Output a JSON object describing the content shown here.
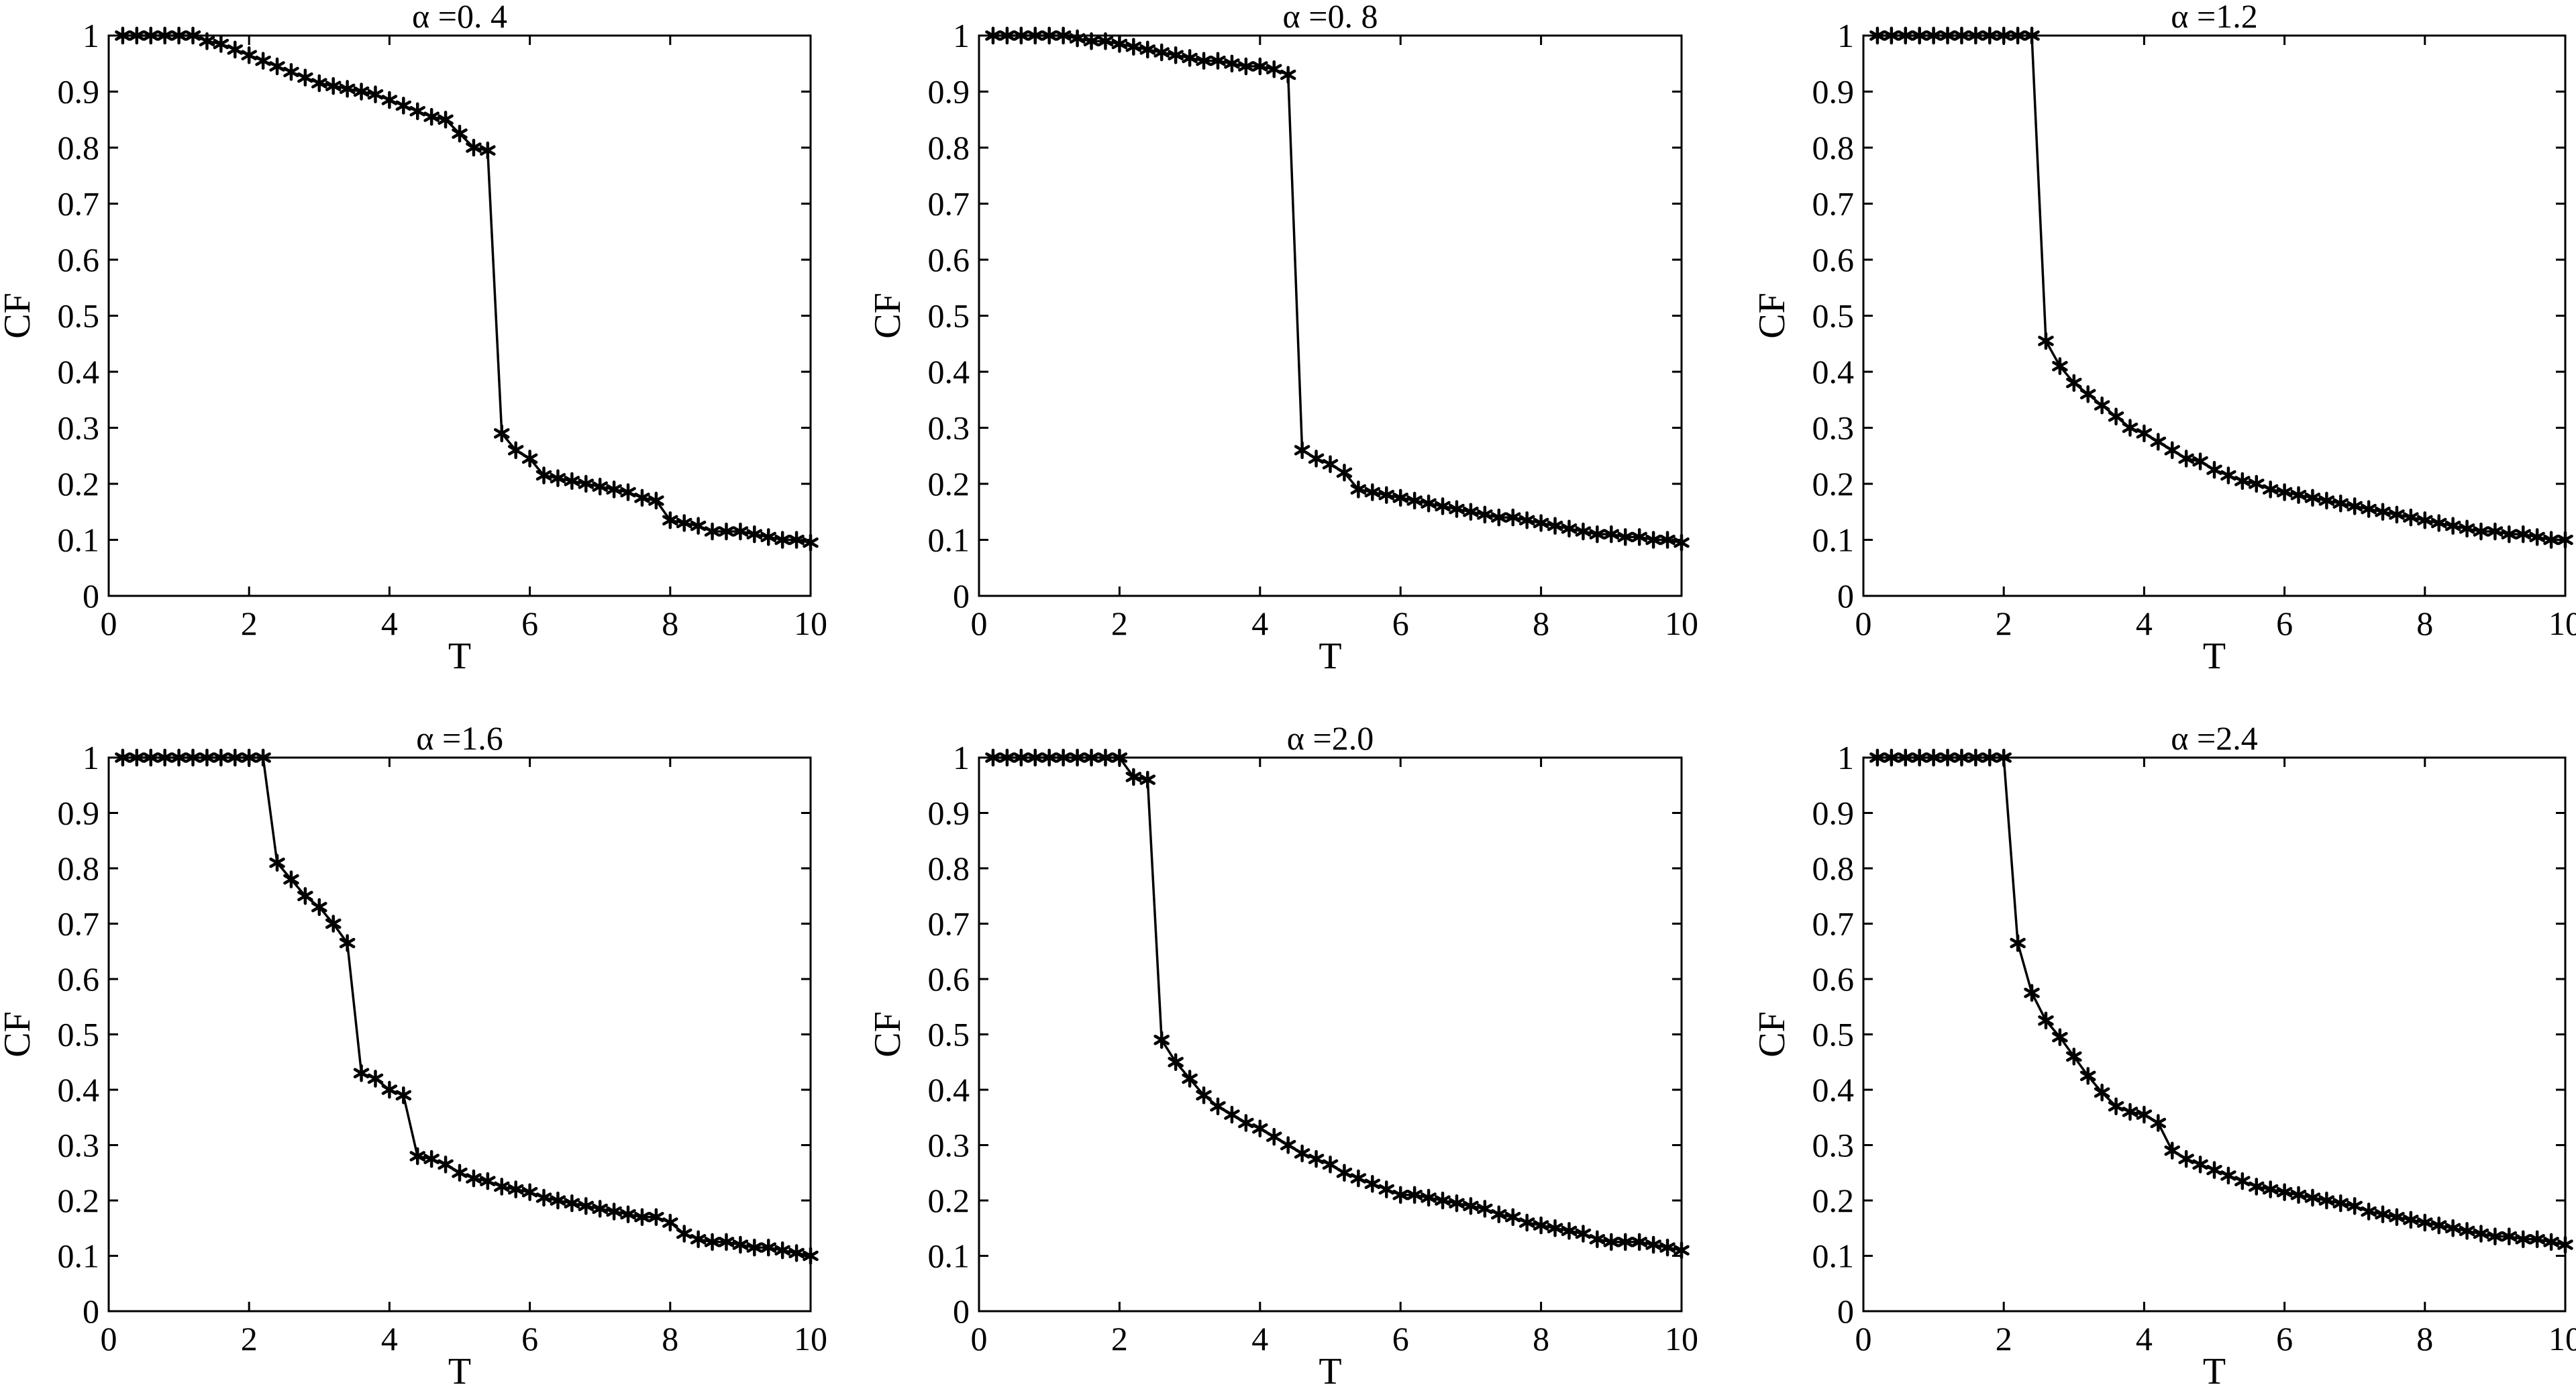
{
  "chart_data": [
    {
      "type": "line",
      "title": "α =0. 4",
      "xlabel": "T",
      "ylabel": "CF",
      "xlim": [
        0,
        10
      ],
      "ylim": [
        0,
        1
      ],
      "xticks": [
        "0",
        "2",
        "4",
        "6",
        "8",
        "10"
      ],
      "yticks": [
        "0",
        "0.1",
        "0.2",
        "0.3",
        "0.4",
        "0.5",
        "0.6",
        "0.7",
        "0.8",
        "0.9",
        "1"
      ],
      "marker": "asterisk",
      "grid": false,
      "x": [
        0.2,
        0.4,
        0.6,
        0.8,
        1.0,
        1.2,
        1.4,
        1.6,
        1.8,
        2.0,
        2.2,
        2.4,
        2.6,
        2.8,
        3.0,
        3.2,
        3.4,
        3.6,
        3.8,
        4.0,
        4.2,
        4.4,
        4.6,
        4.8,
        5.0,
        5.2,
        5.4,
        5.6,
        5.8,
        6.0,
        6.2,
        6.4,
        6.6,
        6.8,
        7.0,
        7.2,
        7.4,
        7.6,
        7.8,
        8.0,
        8.2,
        8.4,
        8.6,
        8.8,
        9.0,
        9.2,
        9.4,
        9.6,
        9.8,
        10.0
      ],
      "y": [
        1.0,
        1.0,
        1.0,
        1.0,
        1.0,
        1.0,
        0.99,
        0.985,
        0.975,
        0.965,
        0.955,
        0.945,
        0.935,
        0.925,
        0.915,
        0.91,
        0.905,
        0.9,
        0.895,
        0.885,
        0.875,
        0.865,
        0.855,
        0.85,
        0.825,
        0.8,
        0.795,
        0.29,
        0.26,
        0.245,
        0.215,
        0.21,
        0.205,
        0.2,
        0.195,
        0.19,
        0.185,
        0.175,
        0.17,
        0.135,
        0.13,
        0.125,
        0.115,
        0.115,
        0.115,
        0.11,
        0.105,
        0.1,
        0.1,
        0.095
      ]
    },
    {
      "type": "line",
      "title": "α =0. 8",
      "xlabel": "T",
      "ylabel": "CF",
      "xlim": [
        0,
        10
      ],
      "ylim": [
        0,
        1
      ],
      "xticks": [
        "0",
        "2",
        "4",
        "6",
        "8",
        "10"
      ],
      "yticks": [
        "0",
        "0.1",
        "0.2",
        "0.3",
        "0.4",
        "0.5",
        "0.6",
        "0.7",
        "0.8",
        "0.9",
        "1"
      ],
      "marker": "asterisk",
      "grid": false,
      "x": [
        0.2,
        0.4,
        0.6,
        0.8,
        1.0,
        1.2,
        1.4,
        1.6,
        1.8,
        2.0,
        2.2,
        2.4,
        2.6,
        2.8,
        3.0,
        3.2,
        3.4,
        3.6,
        3.8,
        4.0,
        4.2,
        4.4,
        4.6,
        4.8,
        5.0,
        5.2,
        5.4,
        5.6,
        5.8,
        6.0,
        6.2,
        6.4,
        6.6,
        6.8,
        7.0,
        7.2,
        7.4,
        7.6,
        7.8,
        8.0,
        8.2,
        8.4,
        8.6,
        8.8,
        9.0,
        9.2,
        9.4,
        9.6,
        9.8,
        10.0
      ],
      "y": [
        1.0,
        1.0,
        1.0,
        1.0,
        1.0,
        1.0,
        0.995,
        0.99,
        0.99,
        0.985,
        0.98,
        0.975,
        0.97,
        0.965,
        0.96,
        0.955,
        0.955,
        0.95,
        0.945,
        0.945,
        0.94,
        0.93,
        0.26,
        0.245,
        0.235,
        0.22,
        0.19,
        0.185,
        0.18,
        0.175,
        0.17,
        0.165,
        0.16,
        0.155,
        0.15,
        0.145,
        0.14,
        0.14,
        0.135,
        0.13,
        0.125,
        0.12,
        0.115,
        0.11,
        0.11,
        0.105,
        0.105,
        0.1,
        0.1,
        0.095
      ]
    },
    {
      "type": "line",
      "title": "α =1.2",
      "xlabel": "T",
      "ylabel": "CF",
      "xlim": [
        0,
        10
      ],
      "ylim": [
        0,
        1
      ],
      "xticks": [
        "0",
        "2",
        "4",
        "6",
        "8",
        "10"
      ],
      "yticks": [
        "0",
        "0.1",
        "0.2",
        "0.3",
        "0.4",
        "0.5",
        "0.6",
        "0.7",
        "0.8",
        "0.9",
        "1"
      ],
      "marker": "asterisk",
      "grid": false,
      "x": [
        0.2,
        0.4,
        0.6,
        0.8,
        1.0,
        1.2,
        1.4,
        1.6,
        1.8,
        2.0,
        2.2,
        2.4,
        2.6,
        2.8,
        3.0,
        3.2,
        3.4,
        3.6,
        3.8,
        4.0,
        4.2,
        4.4,
        4.6,
        4.8,
        5.0,
        5.2,
        5.4,
        5.6,
        5.8,
        6.0,
        6.2,
        6.4,
        6.6,
        6.8,
        7.0,
        7.2,
        7.4,
        7.6,
        7.8,
        8.0,
        8.2,
        8.4,
        8.6,
        8.8,
        9.0,
        9.2,
        9.4,
        9.6,
        9.8,
        10.0
      ],
      "y": [
        1.0,
        1.0,
        1.0,
        1.0,
        1.0,
        1.0,
        1.0,
        1.0,
        1.0,
        1.0,
        1.0,
        1.0,
        0.455,
        0.41,
        0.38,
        0.36,
        0.34,
        0.32,
        0.3,
        0.29,
        0.275,
        0.26,
        0.245,
        0.24,
        0.225,
        0.215,
        0.205,
        0.2,
        0.19,
        0.185,
        0.18,
        0.175,
        0.17,
        0.165,
        0.16,
        0.155,
        0.15,
        0.145,
        0.14,
        0.135,
        0.13,
        0.125,
        0.12,
        0.115,
        0.115,
        0.11,
        0.11,
        0.105,
        0.1,
        0.1
      ]
    },
    {
      "type": "line",
      "title": "α =1.6",
      "xlabel": "T",
      "ylabel": "CF",
      "xlim": [
        0,
        10
      ],
      "ylim": [
        0,
        1
      ],
      "xticks": [
        "0",
        "2",
        "4",
        "6",
        "8",
        "10"
      ],
      "yticks": [
        "0",
        "0.1",
        "0.2",
        "0.3",
        "0.4",
        "0.5",
        "0.6",
        "0.7",
        "0.8",
        "0.9",
        "1"
      ],
      "marker": "asterisk",
      "grid": false,
      "x": [
        0.2,
        0.4,
        0.6,
        0.8,
        1.0,
        1.2,
        1.4,
        1.6,
        1.8,
        2.0,
        2.2,
        2.4,
        2.6,
        2.8,
        3.0,
        3.2,
        3.4,
        3.6,
        3.8,
        4.0,
        4.2,
        4.4,
        4.6,
        4.8,
        5.0,
        5.2,
        5.4,
        5.6,
        5.8,
        6.0,
        6.2,
        6.4,
        6.6,
        6.8,
        7.0,
        7.2,
        7.4,
        7.6,
        7.8,
        8.0,
        8.2,
        8.4,
        8.6,
        8.8,
        9.0,
        9.2,
        9.4,
        9.6,
        9.8,
        10.0
      ],
      "y": [
        1.0,
        1.0,
        1.0,
        1.0,
        1.0,
        1.0,
        1.0,
        1.0,
        1.0,
        1.0,
        1.0,
        0.81,
        0.78,
        0.75,
        0.73,
        0.7,
        0.665,
        0.43,
        0.42,
        0.4,
        0.39,
        0.28,
        0.275,
        0.265,
        0.25,
        0.24,
        0.235,
        0.225,
        0.22,
        0.215,
        0.205,
        0.2,
        0.195,
        0.19,
        0.185,
        0.18,
        0.175,
        0.17,
        0.17,
        0.16,
        0.14,
        0.13,
        0.125,
        0.125,
        0.12,
        0.115,
        0.115,
        0.11,
        0.105,
        0.1
      ]
    },
    {
      "type": "line",
      "title": "α =2.0",
      "xlabel": "T",
      "ylabel": "CF",
      "xlim": [
        0,
        10
      ],
      "ylim": [
        0,
        1
      ],
      "xticks": [
        "0",
        "2",
        "4",
        "6",
        "8",
        "10"
      ],
      "yticks": [
        "0",
        "0.1",
        "0.2",
        "0.3",
        "0.4",
        "0.5",
        "0.6",
        "0.7",
        "0.8",
        "0.9",
        "1"
      ],
      "marker": "asterisk",
      "grid": false,
      "x": [
        0.2,
        0.4,
        0.6,
        0.8,
        1.0,
        1.2,
        1.4,
        1.6,
        1.8,
        2.0,
        2.2,
        2.4,
        2.6,
        2.8,
        3.0,
        3.2,
        3.4,
        3.6,
        3.8,
        4.0,
        4.2,
        4.4,
        4.6,
        4.8,
        5.0,
        5.2,
        5.4,
        5.6,
        5.8,
        6.0,
        6.2,
        6.4,
        6.6,
        6.8,
        7.0,
        7.2,
        7.4,
        7.6,
        7.8,
        8.0,
        8.2,
        8.4,
        8.6,
        8.8,
        9.0,
        9.2,
        9.4,
        9.6,
        9.8,
        10.0
      ],
      "y": [
        1.0,
        1.0,
        1.0,
        1.0,
        1.0,
        1.0,
        1.0,
        1.0,
        1.0,
        1.0,
        0.965,
        0.96,
        0.49,
        0.45,
        0.42,
        0.39,
        0.37,
        0.355,
        0.34,
        0.33,
        0.315,
        0.3,
        0.285,
        0.275,
        0.265,
        0.25,
        0.24,
        0.23,
        0.22,
        0.21,
        0.21,
        0.205,
        0.2,
        0.195,
        0.19,
        0.185,
        0.175,
        0.17,
        0.16,
        0.155,
        0.15,
        0.145,
        0.14,
        0.13,
        0.125,
        0.125,
        0.125,
        0.12,
        0.115,
        0.11
      ]
    },
    {
      "type": "line",
      "title": "α =2.4",
      "xlabel": "T",
      "ylabel": "CF",
      "xlim": [
        0,
        10
      ],
      "ylim": [
        0,
        1
      ],
      "xticks": [
        "0",
        "2",
        "4",
        "6",
        "8",
        "10"
      ],
      "yticks": [
        "0",
        "0.1",
        "0.2",
        "0.3",
        "0.4",
        "0.5",
        "0.6",
        "0.7",
        "0.8",
        "0.9",
        "1"
      ],
      "marker": "asterisk",
      "grid": false,
      "x": [
        0.2,
        0.4,
        0.6,
        0.8,
        1.0,
        1.2,
        1.4,
        1.6,
        1.8,
        2.0,
        2.2,
        2.4,
        2.6,
        2.8,
        3.0,
        3.2,
        3.4,
        3.6,
        3.8,
        4.0,
        4.2,
        4.4,
        4.6,
        4.8,
        5.0,
        5.2,
        5.4,
        5.6,
        5.8,
        6.0,
        6.2,
        6.4,
        6.6,
        6.8,
        7.0,
        7.2,
        7.4,
        7.6,
        7.8,
        8.0,
        8.2,
        8.4,
        8.6,
        8.8,
        9.0,
        9.2,
        9.4,
        9.6,
        9.8,
        10.0
      ],
      "y": [
        1.0,
        1.0,
        1.0,
        1.0,
        1.0,
        1.0,
        1.0,
        1.0,
        1.0,
        1.0,
        0.665,
        0.575,
        0.525,
        0.495,
        0.46,
        0.425,
        0.395,
        0.37,
        0.36,
        0.355,
        0.34,
        0.29,
        0.275,
        0.265,
        0.255,
        0.245,
        0.235,
        0.225,
        0.22,
        0.215,
        0.21,
        0.205,
        0.2,
        0.195,
        0.19,
        0.18,
        0.175,
        0.17,
        0.165,
        0.16,
        0.155,
        0.15,
        0.145,
        0.14,
        0.135,
        0.135,
        0.13,
        0.13,
        0.125,
        0.12
      ]
    }
  ]
}
